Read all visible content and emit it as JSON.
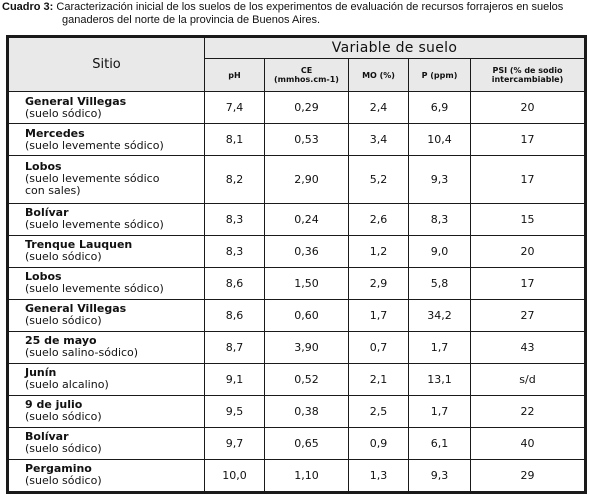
{
  "caption": {
    "label": "Cuadro 3:",
    "line1": "Caracterización inicial de los suelos de los experimentos de evaluación de recursos forrajeros en suelos",
    "line2": "ganaderos del norte de la provincia de Buenos Aires."
  },
  "table": {
    "site_header": "Sitio",
    "group_header": "Variable de suelo",
    "columns": [
      {
        "line1": "pH",
        "line2": ""
      },
      {
        "line1": "CE",
        "line2": "(mmhos.cm-1)"
      },
      {
        "line1": "MO (%)",
        "line2": ""
      },
      {
        "line1": "P (ppm)",
        "line2": ""
      },
      {
        "line1": "PSI (% de sodio",
        "line2": "intercambiable)"
      }
    ],
    "rows": [
      {
        "name": "General Villegas",
        "desc": [
          "(suelo sódico)"
        ],
        "values": [
          "7,4",
          "0,29",
          "2,4",
          "6,9",
          "20"
        ]
      },
      {
        "name": "Mercedes",
        "desc": [
          "(suelo levemente sódico)"
        ],
        "values": [
          "8,1",
          "0,53",
          "3,4",
          "10,4",
          "17"
        ]
      },
      {
        "name": "Lobos",
        "desc": [
          "(suelo levemente sódico",
          "con sales)"
        ],
        "values": [
          "8,2",
          "2,90",
          "5,2",
          "9,3",
          "17"
        ]
      },
      {
        "name": "Bolívar",
        "desc": [
          "(suelo levemente sódico)"
        ],
        "values": [
          "8,3",
          "0,24",
          "2,6",
          "8,3",
          "15"
        ]
      },
      {
        "name": "Trenque Lauquen",
        "desc": [
          "(suelo sódico)"
        ],
        "values": [
          "8,3",
          "0,36",
          "1,2",
          "9,0",
          "20"
        ]
      },
      {
        "name": "Lobos",
        "desc": [
          "(suelo levemente sódico)"
        ],
        "values": [
          "8,6",
          "1,50",
          "2,9",
          "5,8",
          "17"
        ]
      },
      {
        "name": "General Villegas",
        "desc": [
          "(suelo sódico)"
        ],
        "values": [
          "8,6",
          "0,60",
          "1,7",
          "34,2",
          "27"
        ]
      },
      {
        "name": "25 de mayo",
        "desc": [
          "(suelo salino-sódico)"
        ],
        "values": [
          "8,7",
          "3,90",
          "0,7",
          "1,7",
          "43"
        ]
      },
      {
        "name": "Junín",
        "desc": [
          "(suelo alcalino)"
        ],
        "values": [
          "9,1",
          "0,52",
          "2,1",
          "13,1",
          "s/d"
        ]
      },
      {
        "name": "9 de julio",
        "desc": [
          "(suelo sódico)"
        ],
        "values": [
          "9,5",
          "0,38",
          "2,5",
          "1,7",
          "22"
        ]
      },
      {
        "name": "Bolívar",
        "desc": [
          "(suelo sódico)"
        ],
        "values": [
          "9,7",
          "0,65",
          "0,9",
          "6,1",
          "40"
        ]
      },
      {
        "name": "Pergamino",
        "desc": [
          "(suelo sódico)"
        ],
        "values": [
          "10,0",
          "1,10",
          "1,3",
          "9,3",
          "29"
        ]
      }
    ]
  }
}
